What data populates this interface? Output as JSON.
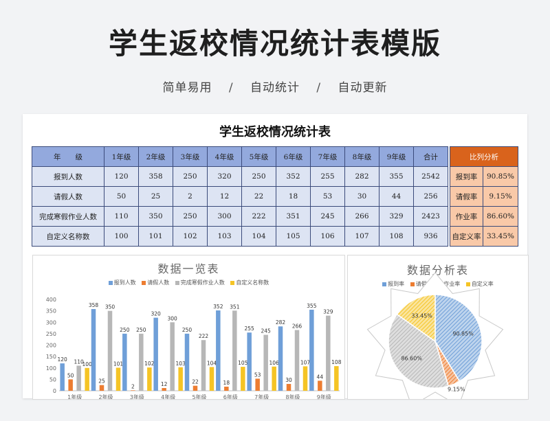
{
  "header": {
    "title": "学生返校情况统计表模版",
    "tagline": [
      "简单易用",
      "自动统计",
      "自动更新"
    ],
    "separator": "/"
  },
  "sheet": {
    "title": "学生返校情况统计表",
    "columns": [
      "年　　级",
      "1年级",
      "2年级",
      "3年级",
      "4年级",
      "5年级",
      "6年级",
      "7年级",
      "8年级",
      "9年级",
      "合计"
    ],
    "rows": [
      {
        "label": "报到人数",
        "values": [
          "120",
          "358",
          "250",
          "320",
          "250",
          "352",
          "255",
          "282",
          "355",
          "2542"
        ]
      },
      {
        "label": "请假人数",
        "values": [
          "50",
          "25",
          "2",
          "12",
          "22",
          "18",
          "53",
          "30",
          "44",
          "256"
        ]
      },
      {
        "label": "完成寒假作业人数",
        "values": [
          "110",
          "350",
          "250",
          "300",
          "222",
          "351",
          "245",
          "266",
          "329",
          "2423"
        ]
      },
      {
        "label": "自定义名称数",
        "values": [
          "100",
          "101",
          "102",
          "103",
          "104",
          "105",
          "106",
          "107",
          "108",
          "936"
        ]
      }
    ],
    "ratio": {
      "header": "比列分析",
      "rows": [
        {
          "label": "报到率",
          "value": "90.85%"
        },
        {
          "label": "请假率",
          "value": "9.15%"
        },
        {
          "label": "作业率",
          "value": "86.60%"
        },
        {
          "label": "自定义率",
          "value": "33.45%"
        }
      ]
    }
  },
  "chart_data": [
    {
      "type": "bar",
      "title": "数据一览表",
      "categories": [
        "1年级",
        "2年级",
        "3年级",
        "4年级",
        "5年级",
        "6年级",
        "7年级",
        "8年级",
        "9年级"
      ],
      "series": [
        {
          "name": "报到人数",
          "values": [
            120,
            358,
            250,
            320,
            250,
            352,
            255,
            282,
            355
          ],
          "color": "#6f9fd8"
        },
        {
          "name": "请假人数",
          "values": [
            50,
            25,
            2,
            12,
            22,
            18,
            53,
            30,
            44
          ],
          "color": "#ed7d31"
        },
        {
          "name": "完成寒假作业人数",
          "values": [
            110,
            350,
            250,
            300,
            222,
            351,
            245,
            266,
            329
          ],
          "color": "#b7b7b7"
        },
        {
          "name": "自定义名称数",
          "values": [
            100,
            101,
            102,
            103,
            104,
            105,
            106,
            107,
            108
          ],
          "color": "#f5c425"
        }
      ],
      "ylim": [
        0,
        400
      ],
      "yticks": [
        0,
        50,
        100,
        150,
        200,
        250,
        300,
        350,
        400
      ],
      "grid": false,
      "legend": "top"
    },
    {
      "type": "pie",
      "title": "数据分析表",
      "labels": [
        "报到率",
        "请假率",
        "作业率",
        "自定义率"
      ],
      "values": [
        90.85,
        9.15,
        86.6,
        33.45
      ],
      "value_labels": [
        "90.85%",
        "9.15%",
        "86.60%",
        "33.45%"
      ],
      "colors": [
        "#6f9fd8",
        "#ed7d31",
        "#b7b7b7",
        "#f5c425"
      ],
      "legend": "top"
    }
  ]
}
